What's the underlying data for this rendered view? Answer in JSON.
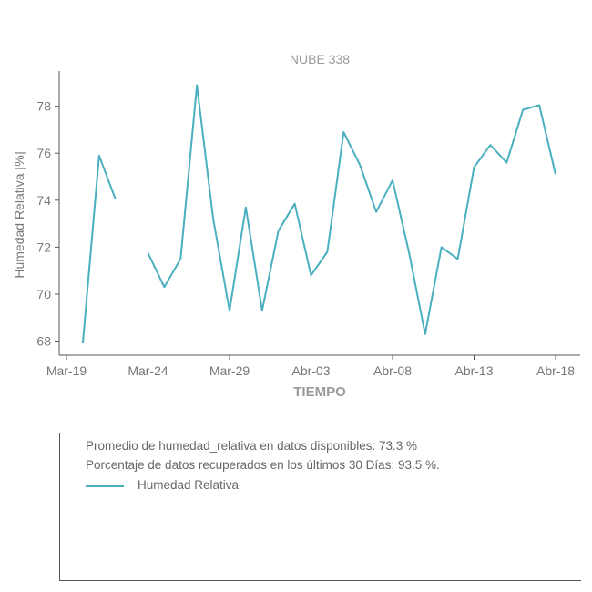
{
  "chart_data": {
    "type": "line",
    "title": "NUBE 338",
    "xlabel": "TIEMPO",
    "ylabel": "Humedad Relativa [%]",
    "x_ticks": [
      "Mar-19",
      "Mar-24",
      "Mar-29",
      "Abr-03",
      "Abr-08",
      "Abr-13",
      "Abr-18"
    ],
    "y_ticks": [
      68,
      70,
      72,
      74,
      76,
      78
    ],
    "ylim": [
      67.4,
      79.5
    ],
    "grid": false,
    "series": [
      {
        "name": "Humedad Relativa",
        "color": "#4aafbf",
        "points": [
          {
            "x": "Mar-20",
            "y": 67.9
          },
          {
            "x": "Mar-21",
            "y": 75.9
          },
          {
            "x": "Mar-22",
            "y": 74.05
          },
          {
            "x": "Mar-23",
            "y": null
          },
          {
            "x": "Mar-24",
            "y": 71.75
          },
          {
            "x": "Mar-25",
            "y": 70.3
          },
          {
            "x": "Mar-26",
            "y": 71.5
          },
          {
            "x": "Mar-27",
            "y": 78.9
          },
          {
            "x": "Mar-28",
            "y": 73.2
          },
          {
            "x": "Mar-29",
            "y": 69.3
          },
          {
            "x": "Mar-30",
            "y": 73.7
          },
          {
            "x": "Mar-31",
            "y": 69.3
          },
          {
            "x": "Abr-01",
            "y": 72.7
          },
          {
            "x": "Abr-02",
            "y": 73.85
          },
          {
            "x": "Abr-03",
            "y": 70.8
          },
          {
            "x": "Abr-04",
            "y": 71.8
          },
          {
            "x": "Abr-05",
            "y": 76.9
          },
          {
            "x": "Abr-06",
            "y": 75.5
          },
          {
            "x": "Abr-07",
            "y": 73.5
          },
          {
            "x": "Abr-08",
            "y": 74.85
          },
          {
            "x": "Abr-09",
            "y": 71.8
          },
          {
            "x": "Abr-10",
            "y": 68.3
          },
          {
            "x": "Abr-11",
            "y": 72.0
          },
          {
            "x": "Abr-12",
            "y": 71.5
          },
          {
            "x": "Abr-13",
            "y": 75.4
          },
          {
            "x": "Abr-14",
            "y": 76.35
          },
          {
            "x": "Abr-15",
            "y": 75.6
          },
          {
            "x": "Abr-16",
            "y": 77.85
          },
          {
            "x": "Abr-17",
            "y": 78.05
          },
          {
            "x": "Abr-18",
            "y": 75.1
          }
        ]
      }
    ]
  },
  "info": {
    "average_text": "Promedio de humedad_relativa en datos disponibles: 73.3 %",
    "recovered_text": "Porcentaje de datos recuperados en los últimos 30 Días: 93.5 %.",
    "legend_label": "Humedad Relativa"
  }
}
